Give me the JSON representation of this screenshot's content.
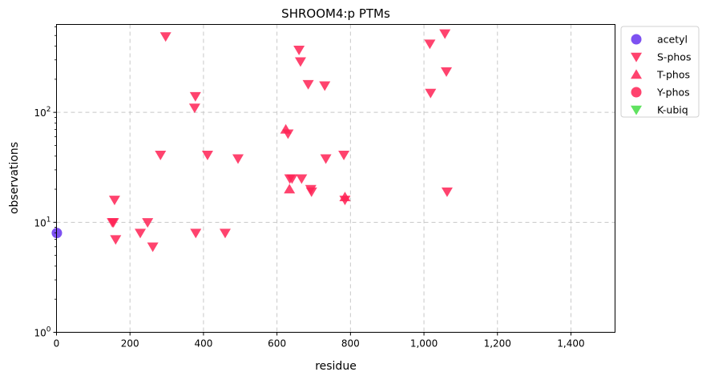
{
  "chart_data": {
    "type": "scatter",
    "title": "SHROOM4:p PTMs",
    "xlabel": "residue",
    "ylabel": "observations",
    "xlim": [
      0,
      1520
    ],
    "ylim": [
      1,
      630
    ],
    "yscale": "log",
    "grid": true,
    "legend_position": "upper right, outside plot area",
    "x_ticks": [
      0,
      200,
      400,
      600,
      800,
      1000,
      1200,
      1400
    ],
    "x_tick_labels": [
      "0",
      "200",
      "400",
      "600",
      "800",
      "1,000",
      "1,200",
      "1,400"
    ],
    "y_ticks": [
      1,
      10,
      100
    ],
    "y_tick_labels": [
      "10^0",
      "10^1",
      "10^2"
    ],
    "series": [
      {
        "name": "acetyl",
        "marker": "circle",
        "color": "#6633ee",
        "points": [
          [
            1,
            8
          ]
        ]
      },
      {
        "name": "S-phos",
        "marker": "triangle-down",
        "color": "#ff2255",
        "points": [
          [
            152,
            10
          ],
          [
            155,
            10
          ],
          [
            158,
            16
          ],
          [
            161,
            7
          ],
          [
            228,
            8
          ],
          [
            248,
            10
          ],
          [
            262,
            6
          ],
          [
            283,
            41
          ],
          [
            297,
            490
          ],
          [
            376,
            110
          ],
          [
            378,
            140
          ],
          [
            379,
            8
          ],
          [
            411,
            41
          ],
          [
            459,
            8
          ],
          [
            494,
            38
          ],
          [
            630,
            64
          ],
          [
            635,
            25
          ],
          [
            641,
            25
          ],
          [
            660,
            370
          ],
          [
            664,
            290
          ],
          [
            667,
            25
          ],
          [
            685,
            180
          ],
          [
            692,
            20
          ],
          [
            694,
            19
          ],
          [
            730,
            175
          ],
          [
            733,
            38
          ],
          [
            782,
            41
          ],
          [
            785,
            16
          ],
          [
            1016,
            420
          ],
          [
            1018,
            150
          ],
          [
            1057,
            520
          ],
          [
            1061,
            235
          ],
          [
            1063,
            19
          ]
        ]
      },
      {
        "name": "T-phos",
        "marker": "triangle-up",
        "color": "#ff2255",
        "points": [
          [
            624,
            70
          ],
          [
            634,
            20
          ],
          [
            785,
            17
          ]
        ]
      },
      {
        "name": "Y-phos",
        "marker": "circle",
        "color": "#ff2255",
        "points": []
      },
      {
        "name": "K-ubiq",
        "marker": "triangle-down",
        "color": "#44dd44",
        "points": []
      }
    ]
  }
}
